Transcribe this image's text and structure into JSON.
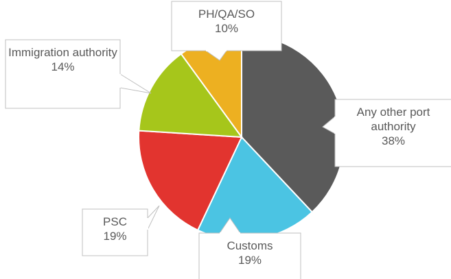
{
  "chart_data": {
    "type": "pie",
    "categories": [
      "Any other port authority",
      "Customs",
      "PSC",
      "Immigration authority",
      "PH/QA/SO"
    ],
    "values": [
      38,
      19,
      19,
      14,
      10
    ],
    "value_labels": [
      "38%",
      "19%",
      "19%",
      "14%",
      "10%"
    ],
    "colors": [
      "#5a5a5a",
      "#4bc4e3",
      "#e2342f",
      "#a6c61b",
      "#edb021"
    ]
  }
}
